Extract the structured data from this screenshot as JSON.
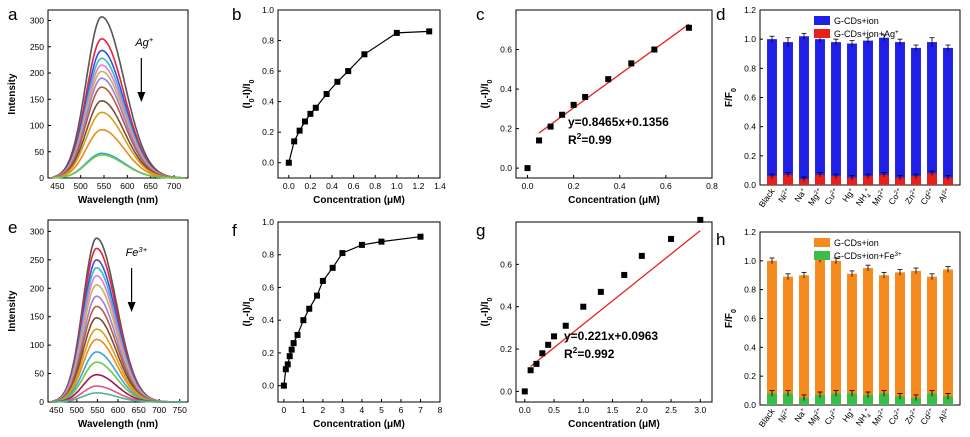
{
  "chart_data": [
    {
      "panel": "a",
      "type": "line",
      "xlabel": "Wavelength (nm)",
      "ylabel": "Intensity",
      "xlim": [
        430,
        730
      ],
      "ylim": [
        0,
        320
      ],
      "xticks": [
        450,
        500,
        550,
        600,
        650,
        700
      ],
      "yticks": [
        0,
        50,
        100,
        150,
        200,
        250,
        300
      ],
      "annotation": {
        "ion": "Ag",
        "charge": "+"
      },
      "peak_wavelength": 545,
      "peak_intensities": [
        307,
        265,
        243,
        228,
        215,
        203,
        190,
        173,
        147,
        125,
        92,
        47,
        44
      ],
      "colors": [
        "#555555",
        "#e8223d",
        "#3a4fe0",
        "#2fbfc8",
        "#f077d0",
        "#c8b45c",
        "#9b7fe0",
        "#b85c3c",
        "#7a4a3a",
        "#d8a018",
        "#f08a18",
        "#35a8d8",
        "#6fc846"
      ]
    },
    {
      "panel": "b",
      "type": "line",
      "xlabel": "Concentration (μM)",
      "ylabel": "(I0-I)/I0",
      "xlim": [
        -0.1,
        1.4
      ],
      "ylim": [
        -0.1,
        1.0
      ],
      "xticks": [
        "0.0",
        "0.2",
        "0.4",
        "0.6",
        "0.8",
        "1.0",
        "1.2",
        "1.4"
      ],
      "yticks": [
        "0.0",
        "0.2",
        "0.4",
        "0.6",
        "0.8",
        "1.0"
      ],
      "x": [
        0.0,
        0.05,
        0.1,
        0.15,
        0.2,
        0.25,
        0.35,
        0.45,
        0.55,
        0.7,
        1.0,
        1.3
      ],
      "y": [
        0.0,
        0.14,
        0.21,
        0.27,
        0.32,
        0.36,
        0.45,
        0.53,
        0.6,
        0.71,
        0.85,
        0.86
      ]
    },
    {
      "panel": "c",
      "type": "scatter",
      "xlabel": "Concentration (μM)",
      "ylabel": "(I0-I)/I0",
      "xlim": [
        -0.05,
        0.8
      ],
      "ylim": [
        -0.05,
        0.8
      ],
      "xticks": [
        "0.0",
        "0.2",
        "0.4",
        "0.6",
        "0.8"
      ],
      "yticks": [
        "0.0",
        "0.2",
        "0.4",
        "0.6"
      ],
      "x": [
        0.0,
        0.05,
        0.1,
        0.15,
        0.2,
        0.25,
        0.35,
        0.45,
        0.55,
        0.7
      ],
      "y": [
        0.0,
        0.14,
        0.21,
        0.27,
        0.32,
        0.36,
        0.45,
        0.53,
        0.6,
        0.71
      ],
      "fit": {
        "slope": 0.8465,
        "intercept": 0.1356,
        "x_range": [
          0.05,
          0.7
        ]
      },
      "equation": "y=0.8465x+0.1356",
      "r2_label": "R",
      "r2_value": "=0.99"
    },
    {
      "panel": "d",
      "type": "bar",
      "ylabel": "F/F0",
      "ylim": [
        0,
        1.2
      ],
      "yticks": [
        "0.0",
        "0.2",
        "0.4",
        "0.6",
        "0.8",
        "1.0",
        "1.2"
      ],
      "categories": [
        "Black",
        "Ni2+",
        "Na+",
        "Mg2+",
        "Cu2+",
        "Hg+",
        "NH4+",
        "Mn2+",
        "Co2+",
        "Zn2+",
        "Cd2+",
        "Al3+"
      ],
      "series": [
        {
          "name": "G-CDs+ion",
          "color": "#1f1fe6",
          "values": [
            1.0,
            0.98,
            1.02,
            1.0,
            0.98,
            0.97,
            0.99,
            1.01,
            0.98,
            0.94,
            0.98,
            0.94
          ],
          "err": [
            0.02,
            0.03,
            0.02,
            0.02,
            0.02,
            0.02,
            0.02,
            0.02,
            0.02,
            0.02,
            0.03,
            0.02
          ]
        },
        {
          "name": "G-CDs+ion+Ag+",
          "color": "#e8201c",
          "values": [
            0.06,
            0.07,
            0.04,
            0.07,
            0.06,
            0.05,
            0.06,
            0.07,
            0.05,
            0.06,
            0.08,
            0.05
          ],
          "err": [
            0.015,
            0.015,
            0.015,
            0.015,
            0.015,
            0.015,
            0.015,
            0.015,
            0.015,
            0.015,
            0.015,
            0.015
          ]
        }
      ]
    },
    {
      "panel": "e",
      "type": "line",
      "xlabel": "Wavelength (nm)",
      "ylabel": "Intensity",
      "xlim": [
        430,
        770
      ],
      "ylim": [
        0,
        320
      ],
      "xticks": [
        450,
        500,
        550,
        600,
        650,
        700,
        750
      ],
      "yticks": [
        0,
        50,
        100,
        150,
        200,
        250,
        300
      ],
      "annotation": {
        "ion": "Fe",
        "charge": "3+"
      },
      "peak_wavelength": 548,
      "peak_intensities": [
        288,
        270,
        250,
        236,
        222,
        206,
        186,
        168,
        148,
        128,
        110,
        88,
        70,
        48,
        28,
        16
      ],
      "colors": [
        "#555555",
        "#e8223d",
        "#3a4fe0",
        "#2fbfc8",
        "#f077d0",
        "#c8b45c",
        "#9b7fe0",
        "#b85c3c",
        "#7a4a3a",
        "#d8a018",
        "#f08a18",
        "#35a8d8",
        "#6fc846",
        "#a01850",
        "#e0558a",
        "#48b888"
      ]
    },
    {
      "panel": "f",
      "type": "line",
      "xlabel": "Concentration (μM)",
      "ylabel": "(I0-I)/I0",
      "xlim": [
        -0.3,
        8
      ],
      "ylim": [
        -0.1,
        1.0
      ],
      "xticks": [
        "0",
        "1",
        "2",
        "3",
        "4",
        "5",
        "6",
        "7",
        "8"
      ],
      "yticks": [
        "0.0",
        "0.2",
        "0.4",
        "0.6",
        "0.8",
        "1.0"
      ],
      "x": [
        0.0,
        0.1,
        0.2,
        0.3,
        0.4,
        0.5,
        0.7,
        1.0,
        1.3,
        1.7,
        2.0,
        2.5,
        3.0,
        4.0,
        5.0,
        7.0
      ],
      "y": [
        0.0,
        0.1,
        0.13,
        0.18,
        0.22,
        0.26,
        0.31,
        0.4,
        0.47,
        0.55,
        0.64,
        0.72,
        0.81,
        0.86,
        0.88,
        0.91
      ]
    },
    {
      "panel": "g",
      "type": "scatter",
      "xlabel": "Concentration (μM)",
      "ylabel": "(I0-I)/I0",
      "xlim": [
        -0.15,
        3.2
      ],
      "ylim": [
        -0.05,
        0.8
      ],
      "xticks": [
        "0.0",
        "0.5",
        "1.0",
        "1.5",
        "2.0",
        "2.5",
        "3.0"
      ],
      "yticks": [
        "0.0",
        "0.2",
        "0.4",
        "0.6"
      ],
      "x": [
        0.0,
        0.1,
        0.2,
        0.3,
        0.4,
        0.5,
        0.7,
        1.0,
        1.3,
        1.7,
        2.0,
        2.5,
        3.0
      ],
      "y": [
        0.0,
        0.1,
        0.13,
        0.18,
        0.22,
        0.26,
        0.31,
        0.4,
        0.47,
        0.55,
        0.64,
        0.72,
        0.81
      ],
      "fit": {
        "slope": 0.221,
        "intercept": 0.0963,
        "x_range": [
          0.1,
          3.0
        ]
      },
      "equation": "y=0.221x+0.0963",
      "r2_label": "R",
      "r2_value": "=0.992"
    },
    {
      "panel": "h",
      "type": "bar",
      "ylabel": "F/F0",
      "ylim": [
        0,
        1.2
      ],
      "yticks": [
        "0.0",
        "0.2",
        "0.4",
        "0.6",
        "0.8",
        "1.0",
        "1.2"
      ],
      "categories": [
        "Black",
        "Ni2+",
        "Na+",
        "Mg2+",
        "Cu2+",
        "Hg+",
        "NH4+",
        "Mn2+",
        "Co2+",
        "Zn2+",
        "Cd2+",
        "Al3+"
      ],
      "series": [
        {
          "name": "G-CDs+ion",
          "color": "#f58a1f",
          "values": [
            1.0,
            0.89,
            0.9,
            1.01,
            1.0,
            0.91,
            0.95,
            0.9,
            0.92,
            0.93,
            0.89,
            0.94
          ],
          "err": [
            0.02,
            0.02,
            0.02,
            0.02,
            0.02,
            0.02,
            0.02,
            0.02,
            0.02,
            0.02,
            0.02,
            0.02
          ]
        },
        {
          "name": "G-CDs+ion+Fe3+",
          "color": "#3cbc4a",
          "values": [
            0.08,
            0.08,
            0.05,
            0.07,
            0.08,
            0.08,
            0.07,
            0.08,
            0.06,
            0.05,
            0.08,
            0.06
          ],
          "err": [
            0.02,
            0.02,
            0.02,
            0.02,
            0.02,
            0.02,
            0.02,
            0.02,
            0.02,
            0.02,
            0.02,
            0.02
          ]
        }
      ]
    }
  ]
}
